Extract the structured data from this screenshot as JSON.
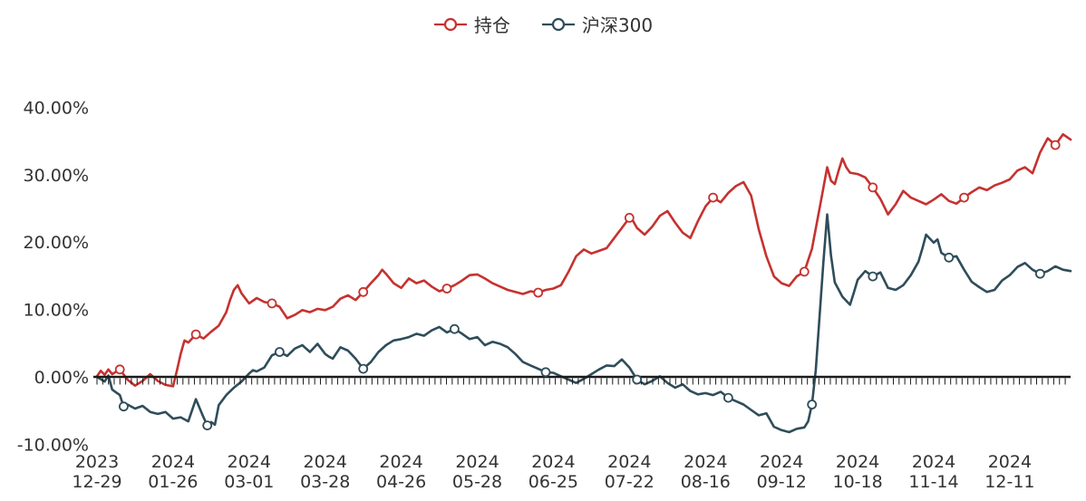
{
  "legend": {
    "items": [
      {
        "label": "持仓",
        "color": "#c5322f"
      },
      {
        "label": "沪深300",
        "color": "#2f4d5a"
      }
    ]
  },
  "chart_data": {
    "type": "line",
    "title": "",
    "grid": false,
    "legend_position": "top-center",
    "zero_line": true,
    "y_axis": {
      "format": "percent",
      "min": -10,
      "max": 40,
      "ticks": [
        {
          "label": "40.00%",
          "value": 40
        },
        {
          "label": "30.00%",
          "value": 30
        },
        {
          "label": "20.00%",
          "value": 20
        },
        {
          "label": "10.00%",
          "value": 10
        },
        {
          "label": "0.00%",
          "value": 0
        },
        {
          "label": "-10.00%",
          "value": -10
        }
      ]
    },
    "x_axis": {
      "max_day": 256,
      "ticks": [
        {
          "year": "2023",
          "date": "12-29",
          "day": 0
        },
        {
          "year": "2024",
          "date": "01-26",
          "day": 20
        },
        {
          "year": "2024",
          "date": "03-01",
          "day": 40
        },
        {
          "year": "2024",
          "date": "03-28",
          "day": 60
        },
        {
          "year": "2024",
          "date": "04-26",
          "day": 80
        },
        {
          "year": "2024",
          "date": "05-28",
          "day": 100
        },
        {
          "year": "2024",
          "date": "06-25",
          "day": 120
        },
        {
          "year": "2024",
          "date": "07-22",
          "day": 140
        },
        {
          "year": "2024",
          "date": "08-16",
          "day": 160
        },
        {
          "year": "2024",
          "date": "09-12",
          "day": 180
        },
        {
          "year": "2024",
          "date": "10-18",
          "day": 200
        },
        {
          "year": "2024",
          "date": "11-14",
          "day": 220
        },
        {
          "year": "2024",
          "date": "12-11",
          "day": 240
        }
      ]
    },
    "series": [
      {
        "name": "持仓",
        "color": "#c5322f",
        "points": [
          [
            0,
            0.1
          ],
          [
            1,
            0.9
          ],
          [
            2,
            0.3
          ],
          [
            3,
            1.1
          ],
          [
            4,
            0.4
          ],
          [
            6,
            1.1
          ],
          [
            8,
            -0.4
          ],
          [
            10,
            -1.3
          ],
          [
            12,
            -0.6
          ],
          [
            14,
            0.4
          ],
          [
            16,
            -0.6
          ],
          [
            18,
            -1.2
          ],
          [
            20,
            -1.4
          ],
          [
            21,
            0.9
          ],
          [
            22,
            3.4
          ],
          [
            23,
            5.4
          ],
          [
            24,
            5.1
          ],
          [
            26,
            6.3
          ],
          [
            28,
            5.7
          ],
          [
            30,
            6.7
          ],
          [
            32,
            7.6
          ],
          [
            34,
            9.6
          ],
          [
            35,
            11.4
          ],
          [
            36,
            12.9
          ],
          [
            37,
            13.6
          ],
          [
            38,
            12.4
          ],
          [
            40,
            10.9
          ],
          [
            42,
            11.7
          ],
          [
            44,
            11.1
          ],
          [
            46,
            10.9
          ],
          [
            48,
            10.4
          ],
          [
            50,
            8.7
          ],
          [
            52,
            9.2
          ],
          [
            54,
            9.9
          ],
          [
            56,
            9.6
          ],
          [
            58,
            10.1
          ],
          [
            60,
            9.9
          ],
          [
            62,
            10.4
          ],
          [
            64,
            11.6
          ],
          [
            66,
            12.1
          ],
          [
            68,
            11.4
          ],
          [
            70,
            12.6
          ],
          [
            72,
            13.9
          ],
          [
            74,
            15.1
          ],
          [
            75,
            15.9
          ],
          [
            76,
            15.3
          ],
          [
            78,
            13.9
          ],
          [
            80,
            13.2
          ],
          [
            82,
            14.6
          ],
          [
            84,
            13.9
          ],
          [
            86,
            14.3
          ],
          [
            88,
            13.4
          ],
          [
            90,
            12.7
          ],
          [
            92,
            13.1
          ],
          [
            94,
            13.6
          ],
          [
            96,
            14.3
          ],
          [
            98,
            15.1
          ],
          [
            100,
            15.2
          ],
          [
            102,
            14.6
          ],
          [
            104,
            13.9
          ],
          [
            106,
            13.4
          ],
          [
            108,
            12.9
          ],
          [
            110,
            12.6
          ],
          [
            112,
            12.3
          ],
          [
            114,
            12.7
          ],
          [
            116,
            12.5
          ],
          [
            118,
            12.9
          ],
          [
            120,
            13.1
          ],
          [
            122,
            13.6
          ],
          [
            124,
            15.6
          ],
          [
            126,
            17.9
          ],
          [
            128,
            18.9
          ],
          [
            130,
            18.3
          ],
          [
            132,
            18.7
          ],
          [
            134,
            19.1
          ],
          [
            136,
            20.6
          ],
          [
            138,
            22.1
          ],
          [
            140,
            23.6
          ],
          [
            141,
            23.1
          ],
          [
            142,
            22.1
          ],
          [
            144,
            21.1
          ],
          [
            146,
            22.3
          ],
          [
            148,
            23.9
          ],
          [
            150,
            24.6
          ],
          [
            152,
            22.9
          ],
          [
            154,
            21.4
          ],
          [
            156,
            20.6
          ],
          [
            158,
            23.1
          ],
          [
            160,
            25.3
          ],
          [
            162,
            26.6
          ],
          [
            164,
            25.9
          ],
          [
            166,
            27.3
          ],
          [
            168,
            28.3
          ],
          [
            170,
            28.9
          ],
          [
            172,
            26.9
          ],
          [
            174,
            21.9
          ],
          [
            176,
            17.9
          ],
          [
            178,
            14.9
          ],
          [
            180,
            13.9
          ],
          [
            182,
            13.5
          ],
          [
            184,
            14.9
          ],
          [
            186,
            15.6
          ],
          [
            188,
            19.0
          ],
          [
            190,
            25.0
          ],
          [
            192,
            31.1
          ],
          [
            193,
            29.1
          ],
          [
            194,
            28.6
          ],
          [
            195,
            30.6
          ],
          [
            196,
            32.4
          ],
          [
            197,
            31.1
          ],
          [
            198,
            30.3
          ],
          [
            200,
            30.1
          ],
          [
            202,
            29.6
          ],
          [
            204,
            28.1
          ],
          [
            206,
            26.4
          ],
          [
            208,
            24.1
          ],
          [
            210,
            25.6
          ],
          [
            212,
            27.6
          ],
          [
            214,
            26.6
          ],
          [
            216,
            26.1
          ],
          [
            218,
            25.6
          ],
          [
            220,
            26.3
          ],
          [
            222,
            27.1
          ],
          [
            224,
            26.1
          ],
          [
            226,
            25.7
          ],
          [
            228,
            26.6
          ],
          [
            230,
            27.4
          ],
          [
            232,
            28.1
          ],
          [
            234,
            27.7
          ],
          [
            236,
            28.4
          ],
          [
            238,
            28.8
          ],
          [
            240,
            29.3
          ],
          [
            242,
            30.6
          ],
          [
            244,
            31.1
          ],
          [
            246,
            30.2
          ],
          [
            248,
            33.3
          ],
          [
            250,
            35.4
          ],
          [
            252,
            34.4
          ],
          [
            254,
            36.0
          ],
          [
            256,
            35.2
          ]
        ]
      },
      {
        "name": "沪深300",
        "color": "#2f4d5a",
        "points": [
          [
            0,
            0.0
          ],
          [
            2,
            -0.7
          ],
          [
            3,
            0.2
          ],
          [
            4,
            -1.9
          ],
          [
            6,
            -2.7
          ],
          [
            7,
            -4.4
          ],
          [
            8,
            -4.1
          ],
          [
            10,
            -4.7
          ],
          [
            12,
            -4.3
          ],
          [
            14,
            -5.2
          ],
          [
            16,
            -5.5
          ],
          [
            18,
            -5.2
          ],
          [
            20,
            -6.2
          ],
          [
            22,
            -6.0
          ],
          [
            24,
            -6.6
          ],
          [
            26,
            -3.3
          ],
          [
            28,
            -6.0
          ],
          [
            29,
            -7.2
          ],
          [
            30,
            -6.7
          ],
          [
            31,
            -7.1
          ],
          [
            32,
            -4.2
          ],
          [
            34,
            -2.7
          ],
          [
            36,
            -1.6
          ],
          [
            38,
            -0.7
          ],
          [
            40,
            0.5
          ],
          [
            41,
            1.0
          ],
          [
            42,
            0.8
          ],
          [
            44,
            1.4
          ],
          [
            46,
            3.2
          ],
          [
            48,
            3.7
          ],
          [
            50,
            3.1
          ],
          [
            52,
            4.2
          ],
          [
            54,
            4.7
          ],
          [
            56,
            3.7
          ],
          [
            58,
            4.9
          ],
          [
            60,
            3.4
          ],
          [
            61,
            3.0
          ],
          [
            62,
            2.7
          ],
          [
            64,
            4.4
          ],
          [
            66,
            3.9
          ],
          [
            68,
            2.7
          ],
          [
            70,
            1.2
          ],
          [
            72,
            2.2
          ],
          [
            74,
            3.7
          ],
          [
            76,
            4.7
          ],
          [
            78,
            5.4
          ],
          [
            80,
            5.6
          ],
          [
            82,
            5.9
          ],
          [
            84,
            6.4
          ],
          [
            86,
            6.1
          ],
          [
            88,
            6.9
          ],
          [
            90,
            7.4
          ],
          [
            92,
            6.6
          ],
          [
            94,
            7.1
          ],
          [
            96,
            6.4
          ],
          [
            98,
            5.6
          ],
          [
            100,
            5.9
          ],
          [
            102,
            4.7
          ],
          [
            104,
            5.2
          ],
          [
            106,
            4.9
          ],
          [
            108,
            4.4
          ],
          [
            110,
            3.4
          ],
          [
            112,
            2.2
          ],
          [
            114,
            1.7
          ],
          [
            116,
            1.2
          ],
          [
            118,
            0.7
          ],
          [
            120,
            0.6
          ],
          [
            122,
            0.1
          ],
          [
            124,
            -0.4
          ],
          [
            126,
            -0.9
          ],
          [
            128,
            -0.3
          ],
          [
            130,
            0.4
          ],
          [
            132,
            1.1
          ],
          [
            134,
            1.7
          ],
          [
            136,
            1.6
          ],
          [
            138,
            2.6
          ],
          [
            140,
            1.4
          ],
          [
            142,
            -0.4
          ],
          [
            144,
            -1.1
          ],
          [
            146,
            -0.6
          ],
          [
            148,
            0.1
          ],
          [
            150,
            -0.9
          ],
          [
            152,
            -1.6
          ],
          [
            154,
            -1.1
          ],
          [
            156,
            -2.1
          ],
          [
            158,
            -2.6
          ],
          [
            160,
            -2.4
          ],
          [
            162,
            -2.7
          ],
          [
            164,
            -2.2
          ],
          [
            166,
            -3.1
          ],
          [
            168,
            -3.6
          ],
          [
            170,
            -4.1
          ],
          [
            172,
            -4.9
          ],
          [
            174,
            -5.7
          ],
          [
            176,
            -5.4
          ],
          [
            178,
            -7.4
          ],
          [
            180,
            -7.9
          ],
          [
            182,
            -8.2
          ],
          [
            184,
            -7.7
          ],
          [
            186,
            -7.5
          ],
          [
            187,
            -6.6
          ],
          [
            188,
            -4.1
          ],
          [
            189,
            1.0
          ],
          [
            190,
            9.0
          ],
          [
            191,
            17.0
          ],
          [
            192,
            24.1
          ],
          [
            193,
            18.0
          ],
          [
            194,
            14.0
          ],
          [
            196,
            11.9
          ],
          [
            198,
            10.7
          ],
          [
            199,
            12.5
          ],
          [
            200,
            14.4
          ],
          [
            202,
            15.7
          ],
          [
            204,
            14.9
          ],
          [
            206,
            15.5
          ],
          [
            208,
            13.2
          ],
          [
            210,
            12.9
          ],
          [
            212,
            13.6
          ],
          [
            214,
            15.1
          ],
          [
            216,
            17.1
          ],
          [
            217,
            19.0
          ],
          [
            218,
            21.1
          ],
          [
            220,
            19.9
          ],
          [
            221,
            20.4
          ],
          [
            222,
            18.4
          ],
          [
            224,
            17.7
          ],
          [
            226,
            17.9
          ],
          [
            228,
            15.9
          ],
          [
            230,
            14.1
          ],
          [
            232,
            13.3
          ],
          [
            234,
            12.6
          ],
          [
            236,
            12.9
          ],
          [
            238,
            14.3
          ],
          [
            240,
            15.1
          ],
          [
            242,
            16.3
          ],
          [
            244,
            16.9
          ],
          [
            246,
            15.9
          ],
          [
            248,
            15.3
          ],
          [
            250,
            15.7
          ],
          [
            252,
            16.4
          ],
          [
            254,
            15.9
          ],
          [
            256,
            15.7
          ]
        ]
      }
    ]
  }
}
